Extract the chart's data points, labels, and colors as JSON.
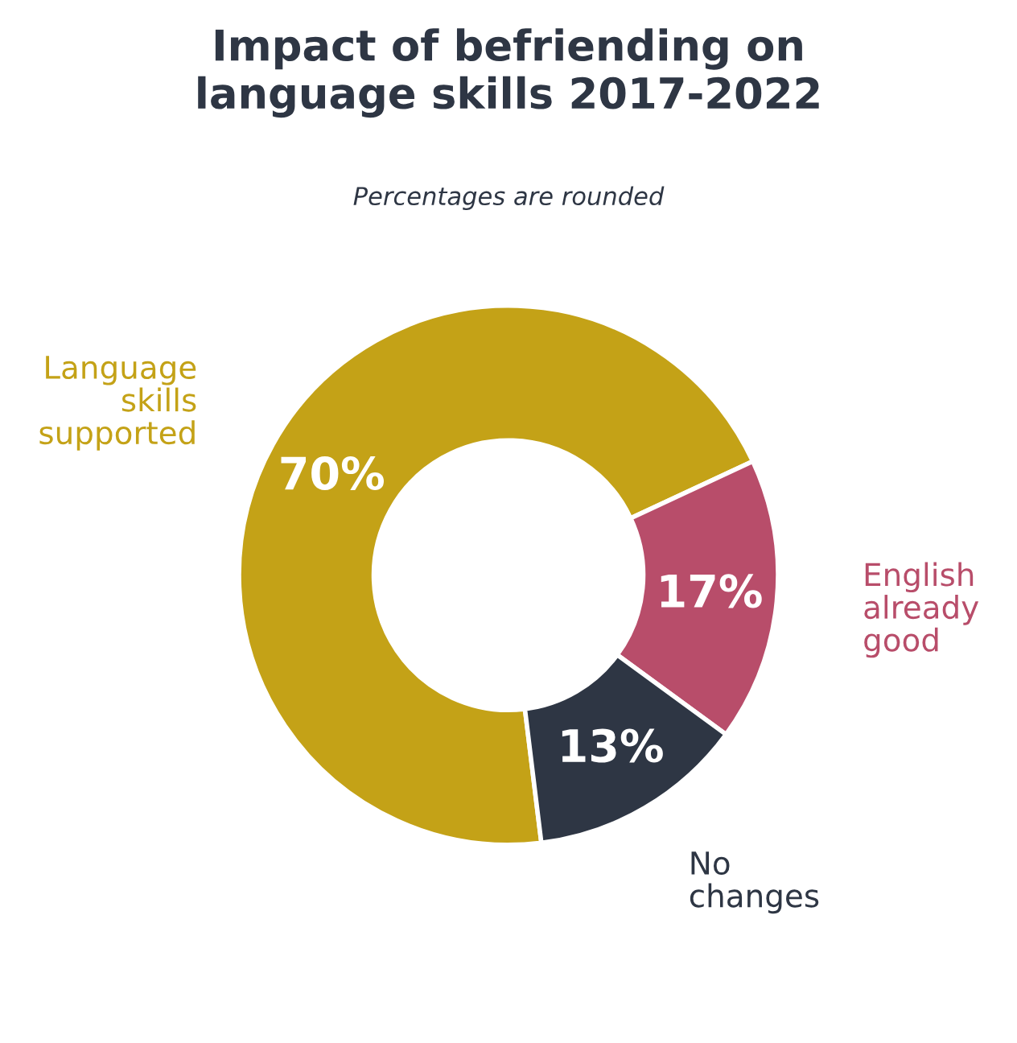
{
  "chart_data": {
    "type": "donut",
    "title": "Impact of befriending on\nlanguage skills 2017-2022",
    "subtitle": "Percentages are rounded",
    "categories": [
      "Language\nskills\nsupported",
      "English\nalready\ngood",
      "No\nchanges"
    ],
    "values": [
      70,
      17,
      13
    ],
    "colors": [
      "#c4a217",
      "#b84d6a",
      "#2e3644"
    ],
    "value_labels": [
      "70%",
      "17%",
      "13%"
    ]
  }
}
